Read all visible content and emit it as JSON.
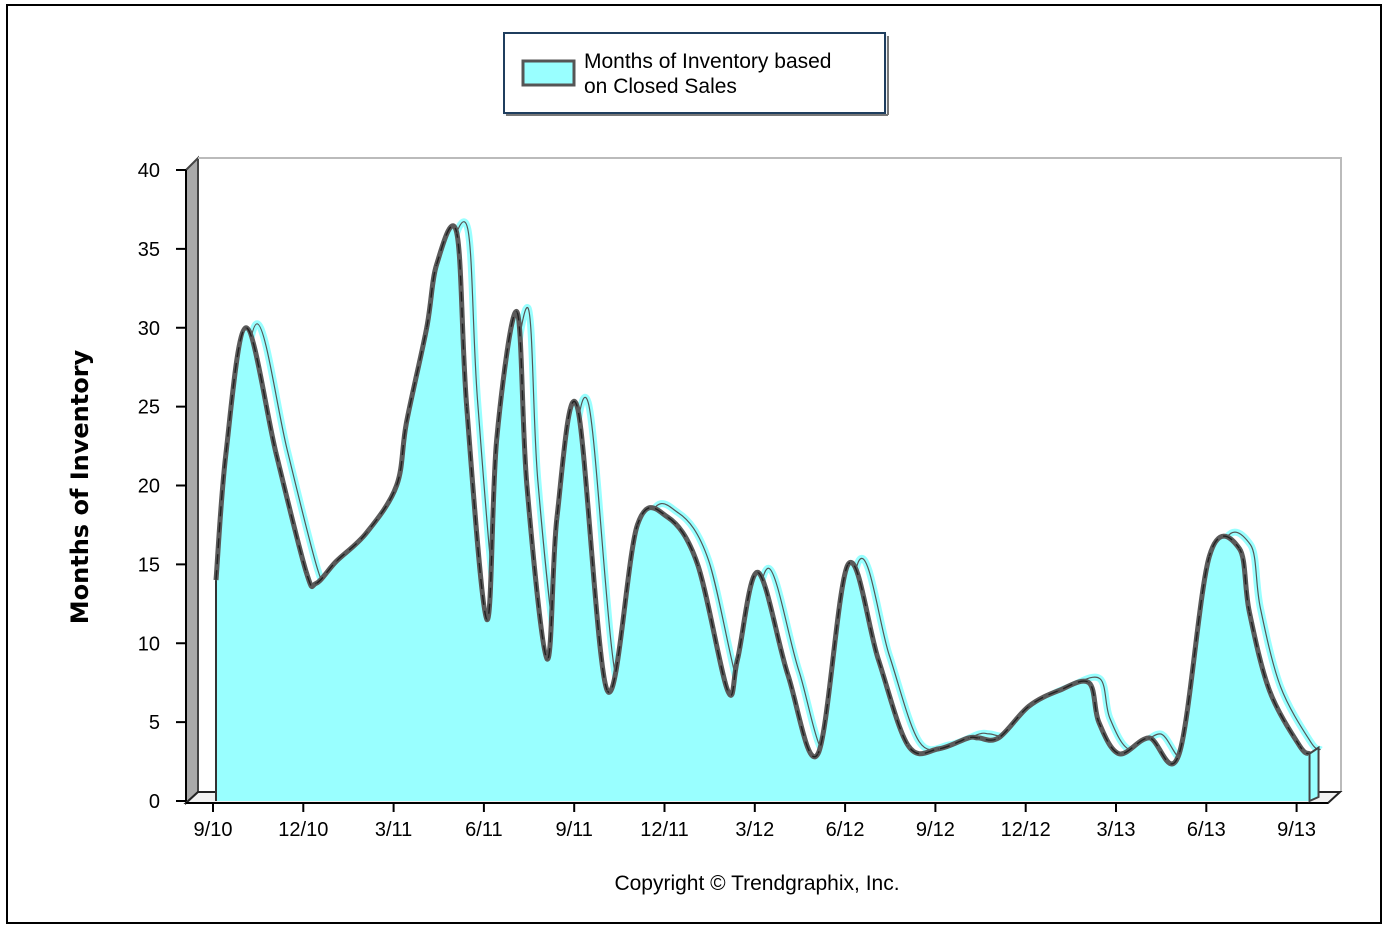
{
  "chart_data": {
    "type": "area",
    "ylabel": "Months of Inventory",
    "ylim": [
      0,
      40
    ],
    "yticks": [
      "0",
      "5",
      "10",
      "15",
      "20",
      "25",
      "30",
      "35",
      "40"
    ],
    "xticks": [
      "9/10",
      "12/10",
      "3/11",
      "6/11",
      "9/11",
      "12/11",
      "3/12",
      "6/12",
      "9/12",
      "12/12",
      "3/13",
      "6/13",
      "9/13"
    ],
    "legend": "top-center",
    "grid": false,
    "series": [
      {
        "name": "Months of Inventory based on Closed Sales",
        "color": "#99FFFF",
        "x": [
          0,
          0.33,
          1,
          2,
          3,
          3.33,
          4,
          5,
          6,
          6.33,
          7,
          7.33,
          8,
          8.33,
          9,
          9.33,
          10,
          10.33,
          11,
          11.33,
          12,
          13,
          14,
          15,
          16,
          17,
          17.33,
          18,
          19,
          20,
          21,
          22,
          23,
          24,
          25,
          25.33,
          26,
          27,
          28,
          29,
          29.33,
          30,
          31,
          32,
          33,
          34,
          34.33,
          35,
          36,
          36.33
        ],
        "values": [
          14,
          22,
          30,
          22,
          14.5,
          13.8,
          15.2,
          17,
          20,
          24,
          30,
          34,
          36,
          25,
          11.5,
          23,
          31,
          20,
          9,
          18,
          25,
          7,
          17.5,
          18,
          15,
          7,
          9,
          14.5,
          8,
          3,
          15,
          9,
          3.5,
          3.3,
          4,
          4,
          4,
          6,
          7,
          7.5,
          5,
          3,
          4,
          3,
          15.5,
          16,
          12,
          7,
          3.5,
          3
        ]
      }
    ]
  },
  "legend_label_line1": "Months of Inventory based",
  "legend_label_line2": "on Closed Sales",
  "copyright": "Copyright © Trendgraphix, Inc."
}
